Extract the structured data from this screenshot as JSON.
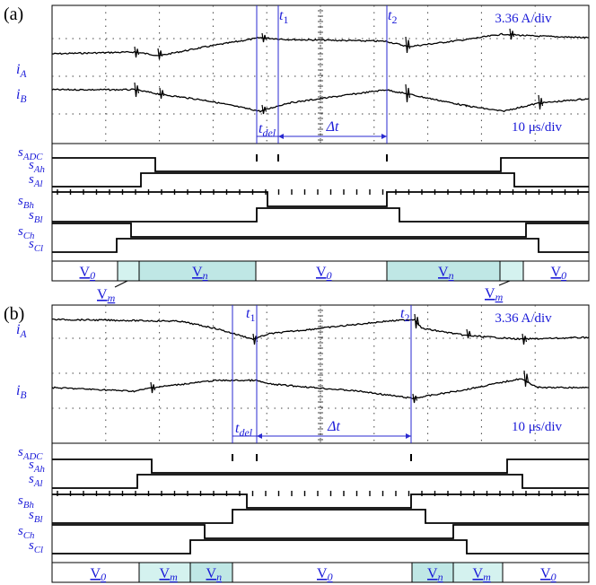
{
  "colors": {
    "trace": "#000000",
    "grid": "#444444",
    "marker": "#2a2ad0",
    "annotation": "#1a1ad8",
    "vn_fill": "#bfe7e5",
    "vm_fill": "#d4f2ef",
    "border": "#000000"
  },
  "panels": [
    {
      "id": "a",
      "label": "(a)",
      "scale_current": "3.36 A/div",
      "scale_time": "10 μs/div",
      "t1": "t",
      "t1_sub": "1",
      "t2": "t",
      "t2_sub": "2",
      "tdel": "t",
      "tdel_sub": "del",
      "dt": "Δt",
      "current_labels": [
        {
          "letter": "i",
          "sub": "A"
        },
        {
          "letter": "i",
          "sub": "B"
        }
      ],
      "signal_labels": [
        {
          "letter": "s",
          "sub": "ADC"
        },
        {
          "letter": "s",
          "sub": "Ah"
        },
        {
          "letter": "s",
          "sub": "Al"
        },
        {
          "letter": "s",
          "sub": "Bh"
        },
        {
          "letter": "s",
          "sub": "Bl"
        },
        {
          "letter": "s",
          "sub": "Ch"
        },
        {
          "letter": "s",
          "sub": "Cl"
        }
      ],
      "vector_segments": [
        {
          "name": "V",
          "sub": "0",
          "kind": "zero"
        },
        {
          "name": "V",
          "sub": "m",
          "kind": "m"
        },
        {
          "name": "V",
          "sub": "n",
          "kind": "n"
        },
        {
          "name": "V",
          "sub": "0",
          "kind": "zero"
        },
        {
          "name": "V",
          "sub": "n",
          "kind": "n"
        },
        {
          "name": "V",
          "sub": "m",
          "kind": "m"
        },
        {
          "name": "V",
          "sub": "0",
          "kind": "zero"
        }
      ],
      "callouts": [
        {
          "name": "V",
          "sub": "m"
        },
        {
          "name": "V",
          "sub": "m"
        }
      ]
    },
    {
      "id": "b",
      "label": "(b)",
      "scale_current": "3.36 A/div",
      "scale_time": "10 μs/div",
      "t1": "t",
      "t1_sub": "1",
      "t2": "t",
      "t2_sub": "2",
      "tdel": "t",
      "tdel_sub": "del",
      "dt": "Δt",
      "current_labels": [
        {
          "letter": "i",
          "sub": "A"
        },
        {
          "letter": "i",
          "sub": "B"
        }
      ],
      "signal_labels": [
        {
          "letter": "s",
          "sub": "ADC"
        },
        {
          "letter": "s",
          "sub": "Ah"
        },
        {
          "letter": "s",
          "sub": "Al"
        },
        {
          "letter": "s",
          "sub": "Bh"
        },
        {
          "letter": "s",
          "sub": "Bl"
        },
        {
          "letter": "s",
          "sub": "Ch"
        },
        {
          "letter": "s",
          "sub": "Cl"
        }
      ],
      "vector_segments": [
        {
          "name": "V",
          "sub": "0",
          "kind": "zero"
        },
        {
          "name": "V",
          "sub": "m",
          "kind": "m"
        },
        {
          "name": "V",
          "sub": "n",
          "kind": "n"
        },
        {
          "name": "V",
          "sub": "0",
          "kind": "zero"
        },
        {
          "name": "V",
          "sub": "n",
          "kind": "n"
        },
        {
          "name": "V",
          "sub": "m",
          "kind": "m"
        },
        {
          "name": "V",
          "sub": "0",
          "kind": "zero"
        }
      ]
    }
  ]
}
